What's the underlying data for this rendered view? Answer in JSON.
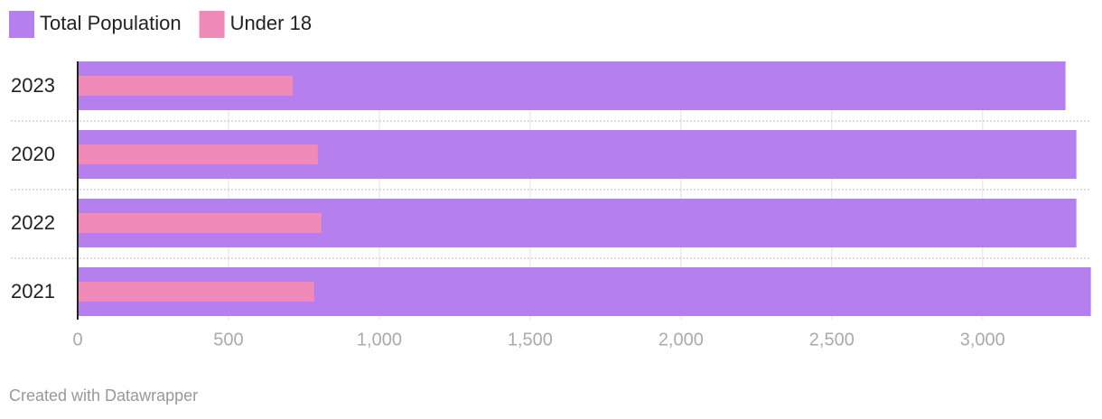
{
  "chart_data": {
    "type": "bar",
    "orientation": "horizontal",
    "categories": [
      "2023",
      "2020",
      "2022",
      "2021"
    ],
    "series": [
      {
        "name": "Total Population",
        "color": "#b57fee",
        "values": [
          3275,
          3311,
          3311,
          3359
        ]
      },
      {
        "name": "Under 18",
        "color": "#f08ab8",
        "values": [
          713,
          796,
          808,
          784
        ]
      }
    ],
    "xlim": [
      0,
      3360
    ],
    "xticks": [
      0,
      500,
      {
        "value": 1000,
        "label": "1,000"
      },
      {
        "value": 1500,
        "label": "1,500"
      },
      {
        "value": 2000,
        "label": "2,000"
      },
      {
        "value": 2500,
        "label": "2,500"
      },
      {
        "value": 3000,
        "label": "3,000"
      }
    ],
    "grid": true,
    "credit": "Created with Datawrapper"
  }
}
